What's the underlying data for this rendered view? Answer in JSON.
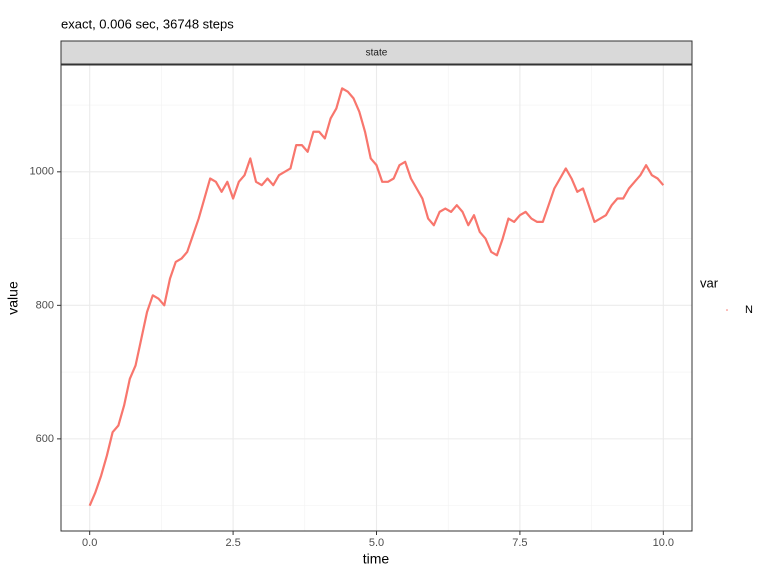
{
  "chart_data": {
    "type": "line",
    "title": "exact, 0.006 sec, 36748 steps",
    "facet_label": "state",
    "x_label": "time",
    "y_label": "value",
    "legend_title": "var",
    "x": [
      0,
      0.1,
      0.2,
      0.3,
      0.4,
      0.5,
      0.6,
      0.7,
      0.8,
      0.9,
      1,
      1.1,
      1.2,
      1.3,
      1.4,
      1.5,
      1.6,
      1.7,
      1.8,
      1.9,
      2,
      2.1,
      2.2,
      2.3,
      2.4,
      2.5,
      2.6,
      2.7,
      2.8,
      2.9,
      3,
      3.1,
      3.2,
      3.3,
      3.4,
      3.5,
      3.6,
      3.7,
      3.8,
      3.9,
      4,
      4.1,
      4.2,
      4.3,
      4.4,
      4.5,
      4.6,
      4.7,
      4.8,
      4.9,
      5,
      5.1,
      5.2,
      5.3,
      5.4,
      5.5,
      5.6,
      5.7,
      5.8,
      5.9,
      6,
      6.1,
      6.2,
      6.3,
      6.4,
      6.5,
      6.6,
      6.7,
      6.8,
      6.9,
      7,
      7.1,
      7.2,
      7.3,
      7.4,
      7.5,
      7.6,
      7.7,
      7.8,
      7.9,
      8,
      8.1,
      8.2,
      8.3,
      8.4,
      8.5,
      8.6,
      8.7,
      8.8,
      8.9,
      9,
      9.1,
      9.2,
      9.3,
      9.4,
      9.5,
      9.6,
      9.7,
      9.8,
      9.9,
      10
    ],
    "series": [
      {
        "name": "N",
        "color": "#F8766D",
        "values": [
          500,
          520,
          545,
          575,
          610,
          620,
          650,
          690,
          710,
          750,
          790,
          815,
          810,
          800,
          840,
          865,
          870,
          880,
          905,
          930,
          960,
          990,
          985,
          970,
          985,
          960,
          985,
          995,
          1020,
          985,
          980,
          990,
          980,
          995,
          1000,
          1005,
          1040,
          1040,
          1030,
          1060,
          1060,
          1050,
          1080,
          1095,
          1125,
          1120,
          1110,
          1090,
          1060,
          1020,
          1010,
          985,
          985,
          990,
          1010,
          1015,
          990,
          975,
          960,
          930,
          920,
          940,
          945,
          940,
          950,
          940,
          920,
          935,
          910,
          900,
          880,
          875,
          900,
          930,
          925,
          935,
          940,
          930,
          925,
          925,
          950,
          975,
          990,
          1005,
          990,
          970,
          975,
          950,
          925,
          930,
          935,
          950,
          960,
          960,
          975,
          985,
          995,
          1010,
          995,
          990,
          980
        ]
      }
    ],
    "xlim": [
      -0.5,
      10.5
    ],
    "ylim": [
      462,
      1160
    ],
    "xticks": [
      {
        "value": 0,
        "label": "0.0"
      },
      2.5,
      {
        "value": 5,
        "label": "5.0"
      },
      7.5,
      {
        "value": 10,
        "label": "10.0"
      }
    ],
    "yticks": [
      600,
      800,
      1000
    ],
    "xminorticks": [
      1.25,
      3.75,
      6.25,
      8.75
    ],
    "yminorticks": [
      500,
      700,
      900,
      1100
    ],
    "grid": true
  }
}
